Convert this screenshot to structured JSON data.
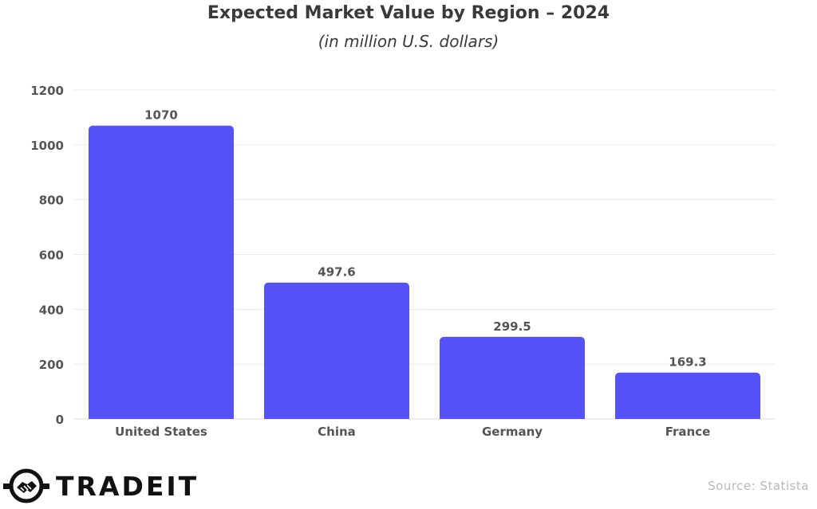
{
  "chart_data": {
    "type": "bar",
    "title": "Expected Market Value by Region – 2024",
    "subtitle": "(in million U.S. dollars)",
    "categories": [
      "United States",
      "China",
      "Germany",
      "France"
    ],
    "values": [
      1070,
      497.6,
      299.5,
      169.3
    ],
    "data_labels": [
      "1070",
      "497.6",
      "299.5",
      "169.3"
    ],
    "ylim": [
      0,
      1200
    ],
    "yticks": [
      0,
      200,
      400,
      600,
      800,
      1000,
      1200
    ],
    "grid": true,
    "legend": "none",
    "bar_color": "#5552fb"
  },
  "brand": {
    "name": "TRADEIT",
    "icon": "handshake-icon"
  },
  "source": "Source: Statista"
}
